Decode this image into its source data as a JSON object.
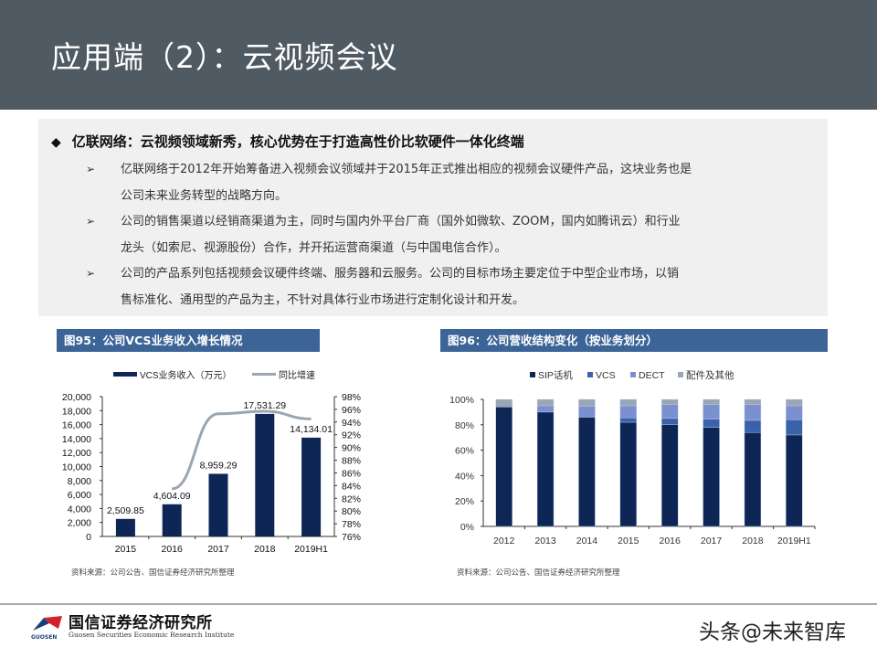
{
  "header": {
    "title": "应用端（2）：云视频会议"
  },
  "summary": {
    "headline": "亿联网络：云视频领域新秀，核心优势在于打造高性价比软硬件一体化终端",
    "headline_icon": "diamond-icon",
    "bullets": [
      {
        "line1": "亿联网络于2012年开始筹备进入视频会议领域并于2015年正式推出相应的视频会议硬件产品，这块业务也是",
        "line2": "公司未来业务转型的战略方向。"
      },
      {
        "line1": "公司的销售渠道以经销商渠道为主，同时与国内外平台厂商（国外如微软、ZOOM，国内如腾讯云）和行业",
        "line2": "龙头（如索尼、视源股份）合作，并开拓运营商渠道（与中国电信合作）。"
      },
      {
        "line1": "公司的产品系列包括视频会议硬件终端、服务器和云服务。公司的目标市场主要定位于中型企业市场，以销",
        "line2": "售标准化、通用型的产品为主，不针对具体行业市场进行定制化设计和开发。"
      }
    ],
    "bullet_icon": "arrow-bullet-icon"
  },
  "figures": {
    "fig95_title": "图95：公司VCS业务收入增长情况",
    "fig96_title": "图96：公司营收结构变化（按业务划分）",
    "fig95_source": "资料来源：公司公告、国信证券经济研究所整理",
    "fig96_source": "资料来源：公司公告、国信证券经济研究所整理"
  },
  "colors": {
    "header_bg": "#4f5a62",
    "title_bar": "#3c6497",
    "navy": "#0d2656",
    "mid_blue": "#3a62ab",
    "light_blue": "#7b91cf",
    "grey": "#98a6b5",
    "line_grey": "#9aa6b2"
  },
  "chart_data": [
    {
      "type": "bar",
      "title": "图95：公司VCS业务收入增长情况",
      "categories": [
        "2015",
        "2016",
        "2017",
        "2018",
        "2019H1"
      ],
      "series": [
        {
          "name": "VCS业务收入（万元）",
          "type": "bar",
          "axis": "left",
          "values": [
            2509.85,
            4604.09,
            8959.29,
            17531.29,
            14134.01
          ],
          "labels": [
            "2,509.85",
            "4,604.09",
            "8,959.29",
            "17,531.29",
            "14,134.01"
          ]
        },
        {
          "name": "同比增速",
          "type": "line",
          "axis": "right",
          "values": [
            null,
            83.5,
            95.3,
            95.7,
            94.5
          ]
        }
      ],
      "y_left": {
        "min": 0,
        "max": 20000,
        "ticks": [
          "0",
          "2,000",
          "4,000",
          "6,000",
          "8,000",
          "10,000",
          "12,000",
          "14,000",
          "16,000",
          "18,000",
          "20,000"
        ]
      },
      "y_right": {
        "min": 76,
        "max": 98,
        "ticks": [
          "76%",
          "78%",
          "80%",
          "82%",
          "84%",
          "86%",
          "88%",
          "90%",
          "92%",
          "94%",
          "96%",
          "98%"
        ]
      },
      "legend": [
        "VCS业务收入（万元）",
        "同比增速"
      ],
      "legend_position": "top",
      "grid": false
    },
    {
      "type": "bar",
      "stacked": true,
      "title": "图96：公司营收结构变化（按业务划分）",
      "categories": [
        "2012",
        "2013",
        "2014",
        "2015",
        "2016",
        "2017",
        "2018",
        "2019H1"
      ],
      "series": [
        {
          "name": "SIP话机",
          "values": [
            94,
            90,
            86,
            82,
            80,
            78,
            74,
            72
          ]
        },
        {
          "name": "VCS",
          "values": [
            0,
            0,
            0,
            3.5,
            5,
            6.5,
            9.5,
            12
          ]
        },
        {
          "name": "DECT",
          "values": [
            0,
            5,
            8.5,
            9.5,
            11,
            11.5,
            12.5,
            11
          ]
        },
        {
          "name": "配件及其他",
          "values": [
            6,
            5,
            5.5,
            5,
            4,
            4,
            4,
            5
          ]
        }
      ],
      "y_axis": {
        "min": 0,
        "max": 100,
        "ticks": [
          "0%",
          "20%",
          "40%",
          "60%",
          "80%",
          "100%"
        ]
      },
      "legend": [
        "SIP话机",
        "VCS",
        "DECT",
        "配件及其他"
      ],
      "legend_position": "top",
      "grid": false
    }
  ],
  "footer": {
    "org_cn": "国信证券经济研究所",
    "org_en": "Guosen Securities Economic Research Institute",
    "logo_text": "GUOSEN",
    "watermark": "头条@未来智库"
  }
}
